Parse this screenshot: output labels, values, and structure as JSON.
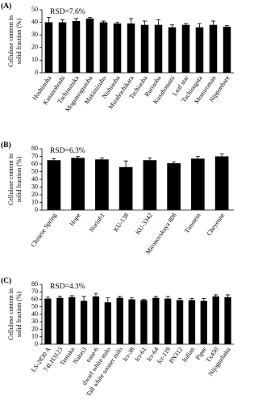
{
  "chart_data": [
    {
      "type": "bar",
      "panel_label": "(A)",
      "annotation": "RSD=7.6%",
      "ylabel": [
        "Cellulose content in",
        "solid fraction (%)"
      ],
      "categories": [
        "Hoshinoha",
        "Kusanohoshi",
        "Tachisuzuka",
        "Mogumoguaoba",
        "Makimizuho",
        "Nishiaoba",
        "Mizuhochikara",
        "Tachiaoba",
        "Ruriaoba",
        "Kusahonami",
        "Leaf star",
        "Tachisugata",
        "Momiroman",
        "Nipponbare"
      ],
      "values": [
        40,
        40,
        41,
        43,
        40,
        39,
        39,
        38,
        38,
        36,
        38,
        36,
        38,
        36.5
      ],
      "errors": [
        4,
        2,
        2,
        1,
        1,
        1,
        4,
        3,
        4,
        2,
        1,
        3,
        3,
        1
      ],
      "color": "#000000",
      "ylim": [
        0,
        50
      ],
      "yticks": [
        0,
        10,
        20,
        30,
        40,
        50
      ]
    },
    {
      "type": "bar",
      "panel_label": "(B)",
      "annotation": "RSD=6.3%",
      "ylabel": [
        "Cellulose content in",
        "solid fraction (%)"
      ],
      "categories": [
        "Chinese Spring",
        "Hope",
        "Norin61",
        "KU-138",
        "KU-3342",
        "Mironovskaya 808",
        "Timstein",
        "Cheyenne"
      ],
      "values": [
        65,
        68,
        66,
        56,
        65,
        61,
        67,
        70
      ],
      "errors": [
        2,
        2,
        2,
        8,
        3,
        2,
        3,
        3
      ],
      "color": "#000000",
      "ylim": [
        0,
        80
      ],
      "yticks": [
        0,
        10,
        20,
        30,
        40,
        50,
        60,
        70,
        80
      ]
    },
    {
      "type": "bar",
      "panel_label": "(C)",
      "annotation": "RSD=4.3%",
      "ylabel": [
        "Cellulose content in",
        "solid fraction (%)"
      ],
      "categories": [
        "LS-2830 A",
        "74LH3123",
        "Tentaka",
        "Nakei3",
        "tone-6",
        "dwarf white milo",
        "Tall white sooner milo",
        "lcr-38",
        "lcr-61",
        "lcr-64",
        "lcr-119",
        "PN312",
        "Italian",
        "Piper",
        "Tx450",
        "Nijoguzhaku"
      ],
      "values": [
        61,
        62,
        63,
        58,
        64,
        56,
        62,
        60,
        59,
        62,
        61,
        59,
        59,
        58,
        64,
        63
      ],
      "errors": [
        2,
        2,
        2,
        6,
        4,
        6,
        2,
        2,
        1,
        2,
        3,
        2,
        2,
        3,
        2,
        3
      ],
      "color": "#000000",
      "ylim": [
        0,
        80
      ],
      "yticks": [
        0,
        10,
        20,
        30,
        40,
        50,
        60,
        70,
        80
      ]
    }
  ]
}
